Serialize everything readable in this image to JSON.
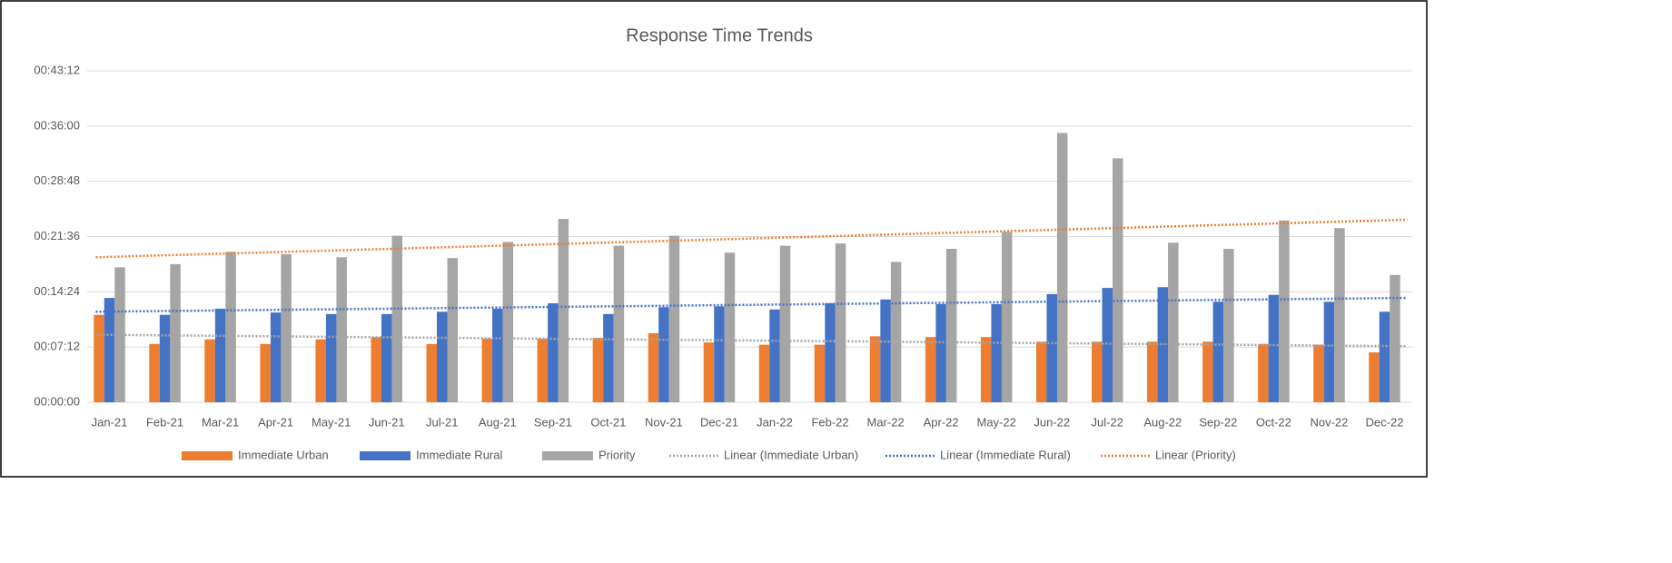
{
  "chart_data": {
    "type": "bar",
    "title": "Response Time Trends",
    "categories": [
      "Jan-21",
      "Feb-21",
      "Mar-21",
      "Apr-21",
      "May-21",
      "Jun-21",
      "Jul-21",
      "Aug-21",
      "Sep-21",
      "Oct-21",
      "Nov-21",
      "Dec-21",
      "Jan-22",
      "Feb-22",
      "Mar-22",
      "Apr-22",
      "May-22",
      "Jun-22",
      "Jul-22",
      "Aug-22",
      "Sep-22",
      "Oct-22",
      "Nov-22",
      "Dec-22"
    ],
    "series": [
      {
        "name": "Immediate Urban",
        "color": "#ed7d31",
        "values": [
          11.4,
          7.6,
          8.2,
          7.6,
          8.2,
          8.5,
          7.6,
          8.3,
          8.3,
          8.4,
          9.0,
          7.8,
          7.5,
          7.5,
          8.6,
          8.5,
          8.5,
          7.9,
          7.9,
          7.9,
          7.9,
          7.6,
          7.5,
          6.5
        ]
      },
      {
        "name": "Immediate Rural",
        "color": "#4472c4",
        "values": [
          13.6,
          11.4,
          12.2,
          11.7,
          11.5,
          11.5,
          11.8,
          12.2,
          12.9,
          11.5,
          12.4,
          12.5,
          12.1,
          12.9,
          13.4,
          12.8,
          12.8,
          14.1,
          14.9,
          15.0,
          13.1,
          14.0,
          13.1,
          11.8
        ]
      },
      {
        "name": "Priority",
        "color": "#a5a5a5",
        "values": [
          17.6,
          18.0,
          19.6,
          19.3,
          18.9,
          21.7,
          18.8,
          20.9,
          23.9,
          20.4,
          21.7,
          19.5,
          20.4,
          20.7,
          18.3,
          20.0,
          22.2,
          35.1,
          31.8,
          20.8,
          20.0,
          23.7,
          22.7,
          16.6
        ]
      }
    ],
    "trendlines": [
      {
        "name": "Linear (Immediate Urban)",
        "color": "#a5a5a5",
        "values": [
          8.8,
          7.3
        ]
      },
      {
        "name": "Linear (Immediate Rural)",
        "color": "#4472c4",
        "values": [
          11.8,
          13.6
        ]
      },
      {
        "name": "Linear (Priority)",
        "color": "#ed7d31",
        "values": [
          18.9,
          23.8
        ]
      }
    ],
    "ylim": [
      0,
      43.2
    ],
    "yticks": [
      {
        "value": 0,
        "label": "00:00:00"
      },
      {
        "value": 7.2,
        "label": "00:07:12"
      },
      {
        "value": 14.4,
        "label": "00:14:24"
      },
      {
        "value": 21.6,
        "label": "00:21:36"
      },
      {
        "value": 28.8,
        "label": "00:28:48"
      },
      {
        "value": 36,
        "label": "00:36:00"
      },
      {
        "value": 43.2,
        "label": "00:43:12"
      }
    ],
    "grid": true,
    "legend": "bottom"
  }
}
